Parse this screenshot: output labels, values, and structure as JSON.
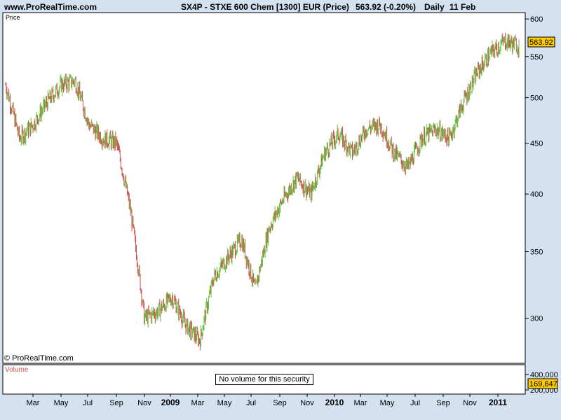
{
  "header": {
    "site": "www.ProRealTime.com",
    "title": "SX4P - STXE 600 Chem [1300] EUR (Price)",
    "last": "563.92 (-0.20%)",
    "period": "Daily",
    "date": "11 Feb"
  },
  "panel": {
    "price_label": "Price",
    "copyright": "© ProRealTime.com",
    "volume_label": "Volume",
    "no_volume": "No volume for this security",
    "volume_ticks": [
      "400,000",
      "200,000"
    ],
    "volume_badge": "169,847"
  },
  "colors": {
    "up": "#5cc83c",
    "down": "#d05050",
    "badge": "#ffcc00"
  },
  "chart_data": {
    "type": "line",
    "scale": "log",
    "ylim": [
      272,
      605
    ],
    "yticks": [
      300,
      350,
      400,
      450,
      500,
      550,
      600
    ],
    "last_price": "563.92",
    "xticks": [
      "Mar",
      "May",
      "Jul",
      "Sep",
      "Nov",
      "2009",
      "Mar",
      "May",
      "Jul",
      "Sep",
      "Nov",
      "2010",
      "Mar",
      "May",
      "Jul",
      "Sep",
      "Nov",
      "2011"
    ],
    "xticks_bold": [
      "2009",
      "2010",
      "2011"
    ],
    "x": [
      "2008-01",
      "2008-02",
      "2008-03",
      "2008-04",
      "2008-05",
      "2008-06",
      "2008-07",
      "2008-08",
      "2008-09",
      "2008-10",
      "2008-11",
      "2008-12",
      "2009-01",
      "2009-02",
      "2009-03",
      "2009-04",
      "2009-05",
      "2009-06",
      "2009-07",
      "2009-08",
      "2009-09",
      "2009-10",
      "2009-11",
      "2009-12",
      "2010-01",
      "2010-02",
      "2010-03",
      "2010-04",
      "2010-05",
      "2010-06",
      "2010-07",
      "2010-08",
      "2010-09",
      "2010-10",
      "2010-11",
      "2010-12",
      "2011-01",
      "2011-02"
    ],
    "close": [
      515,
      455,
      470,
      495,
      515,
      520,
      470,
      455,
      450,
      385,
      300,
      305,
      315,
      295,
      285,
      330,
      345,
      360,
      320,
      370,
      395,
      415,
      400,
      440,
      460,
      440,
      465,
      470,
      440,
      425,
      455,
      465,
      455,
      495,
      530,
      555,
      570,
      564
    ]
  }
}
